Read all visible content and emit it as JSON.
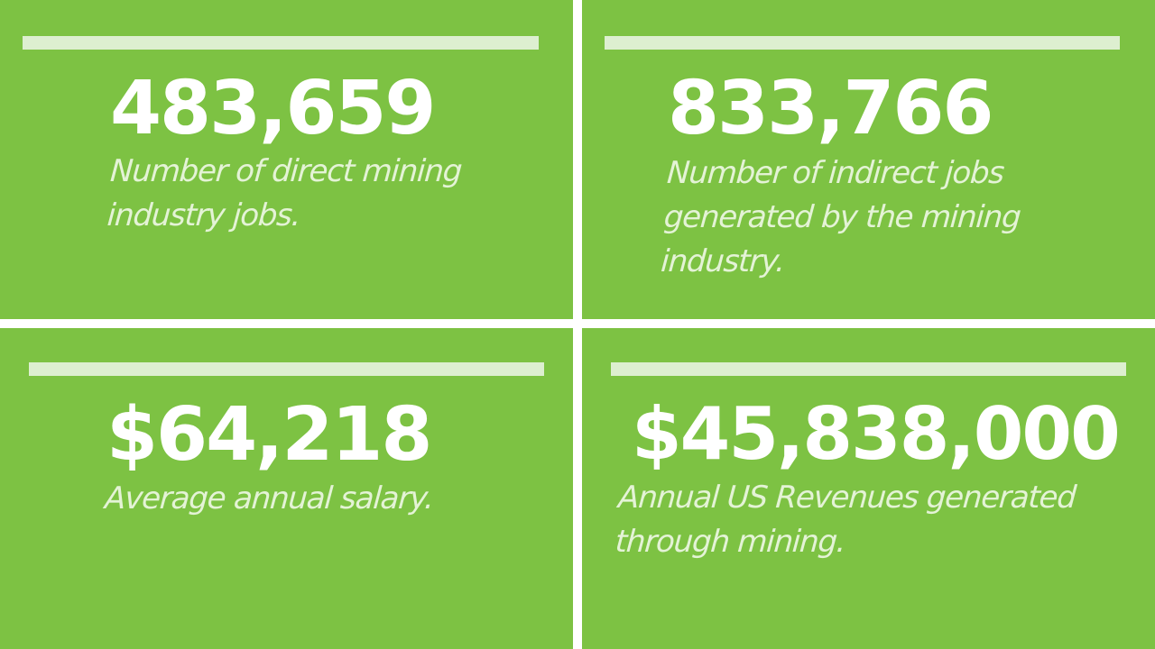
{
  "colors": {
    "panel_background": "#7DC243",
    "accent_bar": "#DDEFD0",
    "value_text": "#FFFFFF",
    "caption_text": "#E4F3D6",
    "divider": "#FFFFFF"
  },
  "stats": [
    {
      "value": "483,659",
      "caption": "Number of direct mining industry jobs."
    },
    {
      "value": "833,766",
      "caption": "Number of indirect jobs generated by the mining industry."
    },
    {
      "value": "$64,218",
      "caption": "Average annual salary."
    },
    {
      "value": "$45,838,000",
      "caption": "Annual US Revenues generated through mining."
    }
  ]
}
